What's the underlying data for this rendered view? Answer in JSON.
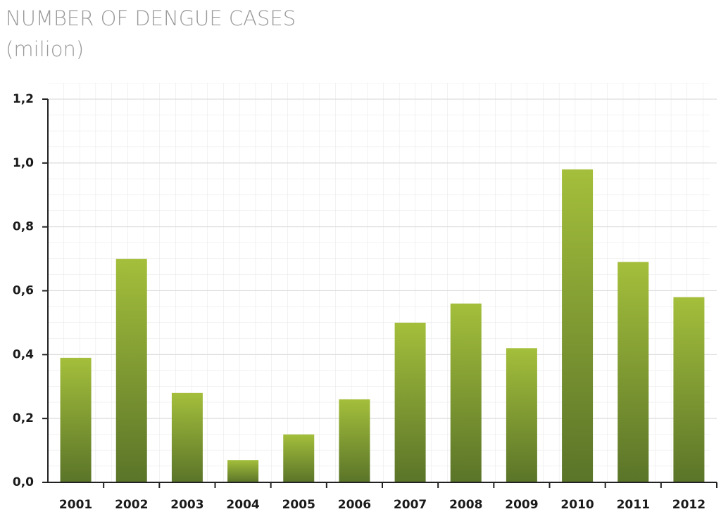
{
  "chart_data": {
    "type": "bar",
    "title": "NUMBER OF DENGUE CASES",
    "subtitle": "(milion)",
    "categories": [
      "2001",
      "2002",
      "2003",
      "2004",
      "2005",
      "2006",
      "2007",
      "2008",
      "2009",
      "2010",
      "2011",
      "2012"
    ],
    "values": [
      0.39,
      0.7,
      0.28,
      0.07,
      0.15,
      0.26,
      0.5,
      0.56,
      0.42,
      0.98,
      0.69,
      0.58
    ],
    "color": "#7f9c30",
    "ylim": [
      0,
      1.2
    ],
    "yticks": [
      {
        "value": 0,
        "label": "0,0"
      },
      {
        "value": 0.2,
        "label": "0,2"
      },
      {
        "value": 0.4,
        "label": "0,4"
      },
      {
        "value": 0.6,
        "label": "0,6"
      },
      {
        "value": 0.8,
        "label": "0,8"
      },
      {
        "value": 1.0,
        "label": "1,0"
      },
      {
        "value": 1.2,
        "label": "1,2"
      }
    ],
    "grid": true
  }
}
